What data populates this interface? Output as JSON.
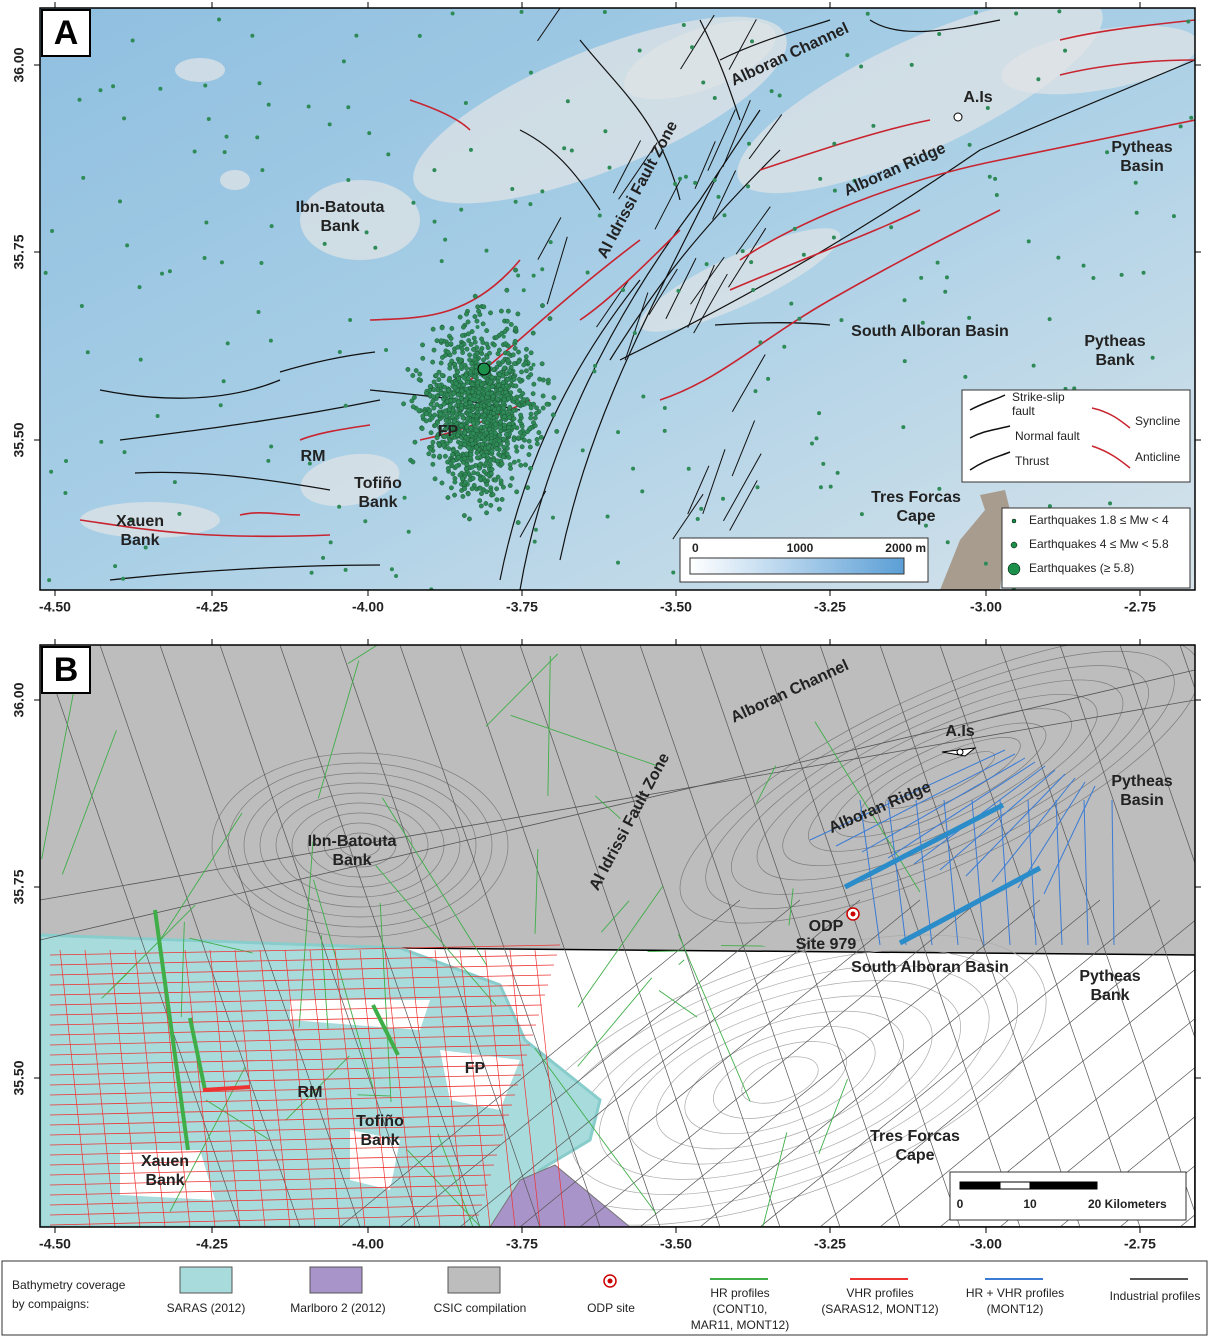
{
  "panel_a": {
    "letter": "A",
    "labels": [
      [
        "Alboran Channel"
      ],
      [
        "A.Is"
      ],
      [
        "Pytheas",
        "Basin"
      ],
      [
        "Alboran Ridge"
      ],
      [
        "Ibn-Batouta",
        "Bank"
      ],
      [
        "Al Idrissi Fault Zone"
      ],
      [
        "South Alboran Basin"
      ],
      [
        "Pytheas",
        "Bank"
      ],
      [
        "FP"
      ],
      [
        "RM"
      ],
      [
        "Tofiño",
        "Bank"
      ],
      [
        "Xauen",
        "Bank"
      ],
      [
        "Tres Forcas",
        "Cape"
      ]
    ],
    "x_ticks": [
      "-4.50",
      "-4.25",
      "-4.00",
      "-3.75",
      "-3.50",
      "-3.25",
      "-3.00",
      "-2.75"
    ],
    "y_ticks": [
      "36.00",
      "35.75",
      "35.50"
    ],
    "structure_legend": [
      [
        "Strike-slip",
        "fault"
      ],
      [
        "Normal fault"
      ],
      [
        "Thrust"
      ],
      [
        "Syncline"
      ],
      [
        "Anticline"
      ]
    ],
    "earthquake_legend": [
      "Earthquakes 1.8 ≤ Mw < 4",
      "Earthquakes 4 ≤ Mw < 5.8",
      "Earthquakes (≥ 5.8)"
    ],
    "depth_scale": [
      "0",
      "1000",
      "2000 m"
    ]
  },
  "panel_b": {
    "letter": "B",
    "labels": [
      [
        "Alboran Channel"
      ],
      [
        "A.Is"
      ],
      [
        "Pytheas",
        "Basin"
      ],
      [
        "Alboran Ridge"
      ],
      [
        "Ibn-Batouta",
        "Bank"
      ],
      [
        "Al Idrissi Fault Zone"
      ],
      [
        "ODP",
        "Site 979"
      ],
      [
        "South Alboran Basin"
      ],
      [
        "Pytheas",
        "Bank"
      ],
      [
        "FP"
      ],
      [
        "RM"
      ],
      [
        "Tofiño",
        "Bank"
      ],
      [
        "Xauen",
        "Bank"
      ],
      [
        "Tres Forcas",
        "Cape"
      ]
    ],
    "x_ticks": [
      "-4.50",
      "-4.25",
      "-4.00",
      "-3.75",
      "-3.50",
      "-3.25",
      "-3.00",
      "-2.75"
    ],
    "y_ticks": [
      "36.00",
      "35.75",
      "35.50"
    ],
    "distance_scale": [
      "0",
      "10",
      "20 Kilometers"
    ]
  },
  "legend": {
    "heading": [
      "Bathymetry coverage",
      "by compaigns:"
    ],
    "items": [
      [
        "SARAS (2012)"
      ],
      [
        "Marlboro 2 (2012)"
      ],
      [
        "CSIC compilation"
      ],
      [
        "ODP site"
      ],
      [
        "HR profiles",
        "(CONT10,",
        "MAR11, MONT12)"
      ],
      [
        "VHR profiles",
        "(SARAS12, MONT12)"
      ],
      [
        "HR + VHR profiles",
        "(MONT12)"
      ],
      [
        "Industrial profiles"
      ]
    ]
  }
}
